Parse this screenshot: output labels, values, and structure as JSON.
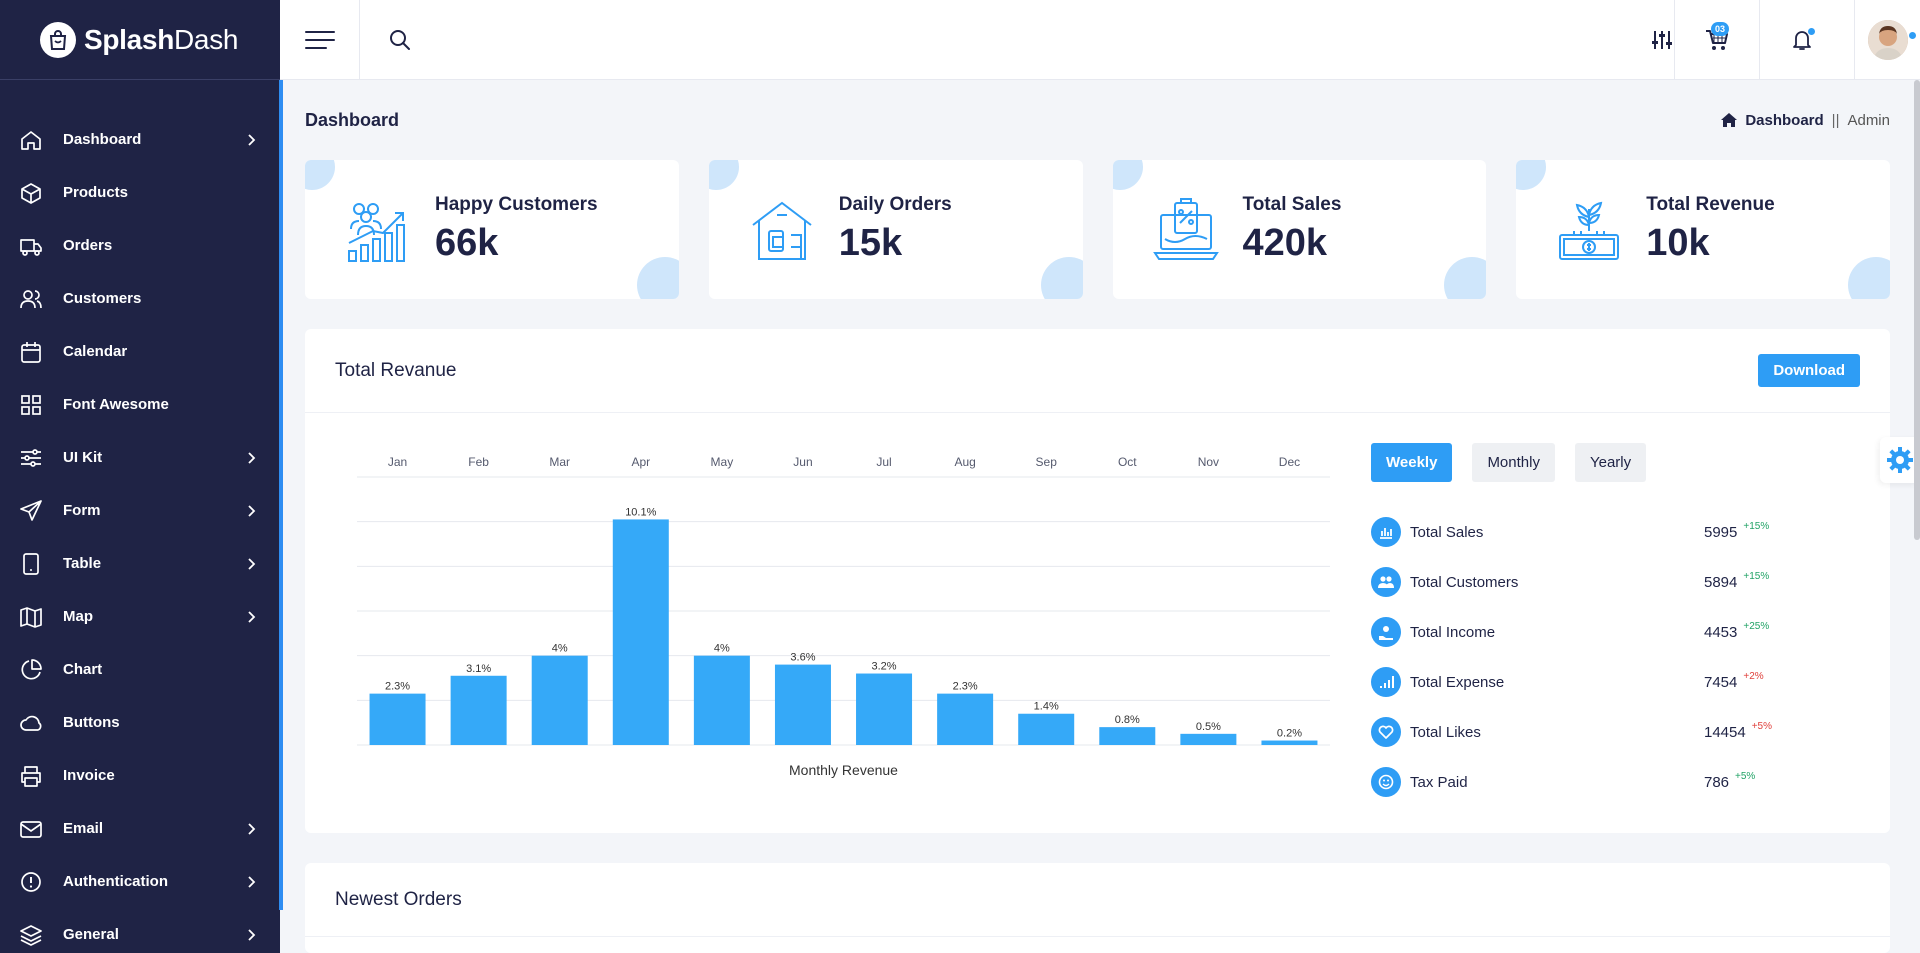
{
  "brand": {
    "name_bold": "Splash",
    "name_light": "Dash"
  },
  "sidebar": {
    "items": [
      {
        "label": "Dashboard",
        "icon": "home-icon",
        "has_children": true
      },
      {
        "label": "Products",
        "icon": "box-icon",
        "has_children": false
      },
      {
        "label": "Orders",
        "icon": "truck-icon",
        "has_children": false
      },
      {
        "label": "Customers",
        "icon": "users-icon",
        "has_children": false
      },
      {
        "label": "Calendar",
        "icon": "calendar-icon",
        "has_children": false
      },
      {
        "label": "Font Awesome",
        "icon": "grid-icon",
        "has_children": false
      },
      {
        "label": "UI Kit",
        "icon": "sliders-icon",
        "has_children": true
      },
      {
        "label": "Form",
        "icon": "send-icon",
        "has_children": true
      },
      {
        "label": "Table",
        "icon": "tablet-icon",
        "has_children": true
      },
      {
        "label": "Map",
        "icon": "map-icon",
        "has_children": true
      },
      {
        "label": "Chart",
        "icon": "pie-chart-icon",
        "has_children": false
      },
      {
        "label": "Buttons",
        "icon": "cloud-icon",
        "has_children": false
      },
      {
        "label": "Invoice",
        "icon": "printer-icon",
        "has_children": false
      },
      {
        "label": "Email",
        "icon": "mail-icon",
        "has_children": true
      },
      {
        "label": "Authentication",
        "icon": "alert-circle-icon",
        "has_children": true
      },
      {
        "label": "General",
        "icon": "layers-icon",
        "has_children": true
      }
    ]
  },
  "topbar": {
    "cart_count": "03"
  },
  "page": {
    "title": "Dashboard",
    "breadcrumb": {
      "home": "Dashboard",
      "separator": "||",
      "current": "Admin"
    }
  },
  "stats": [
    {
      "label": "Happy Customers",
      "value": "66k",
      "icon": "growth-customers-icon"
    },
    {
      "label": "Daily Orders",
      "value": "15k",
      "icon": "shop-orders-icon"
    },
    {
      "label": "Total Sales",
      "value": "420k",
      "icon": "laptop-sales-icon"
    },
    {
      "label": "Total Revenue",
      "value": "10k",
      "icon": "money-plant-icon"
    }
  ],
  "revenue_card": {
    "title": "Total Revanue",
    "download_label": "Download",
    "tabs": [
      "Weekly",
      "Monthly",
      "Yearly"
    ],
    "active_tab": "Weekly",
    "metrics": [
      {
        "label": "Total Sales",
        "value": "5995",
        "delta": "+15%",
        "trend": "up",
        "icon": "bar-chart-icon"
      },
      {
        "label": "Total Customers",
        "value": "5894",
        "delta": "+15%",
        "trend": "up",
        "icon": "users-icon"
      },
      {
        "label": "Total Income",
        "value": "4453",
        "delta": "+25%",
        "trend": "up",
        "icon": "hand-coin-icon"
      },
      {
        "label": "Total Expense",
        "value": "7454",
        "delta": "+2%",
        "trend": "down",
        "icon": "signal-icon"
      },
      {
        "label": "Total Likes",
        "value": "14454",
        "delta": "+5%",
        "trend": "down",
        "icon": "heart-icon"
      },
      {
        "label": "Tax Paid",
        "value": "786",
        "delta": "+5%",
        "trend": "up",
        "icon": "smile-icon"
      }
    ]
  },
  "orders_card": {
    "title": "Newest Orders"
  },
  "colors": {
    "sidebar": "#1f2345",
    "accent": "#2e9df5",
    "bar": "#35a9f8",
    "up": "#21a366",
    "down": "#e0413c"
  },
  "chart_data": {
    "type": "bar",
    "categories": [
      "Jan",
      "Feb",
      "Mar",
      "Apr",
      "May",
      "Jun",
      "Jul",
      "Aug",
      "Sep",
      "Oct",
      "Nov",
      "Dec"
    ],
    "values": [
      2.3,
      3.1,
      4,
      10.1,
      4,
      3.6,
      3.2,
      2.3,
      1.4,
      0.8,
      0.5,
      0.2
    ],
    "data_labels": [
      "2.3%",
      "3.1%",
      "4%",
      "10.1%",
      "4%",
      "3.6%",
      "3.2%",
      "2.3%",
      "1.4%",
      "0.8%",
      "0.5%",
      "0.2%"
    ],
    "xlabel": "Monthly Revenue",
    "ylabel": "",
    "ylim": [
      0,
      12
    ],
    "x_axis_position": "top",
    "grid": true
  }
}
